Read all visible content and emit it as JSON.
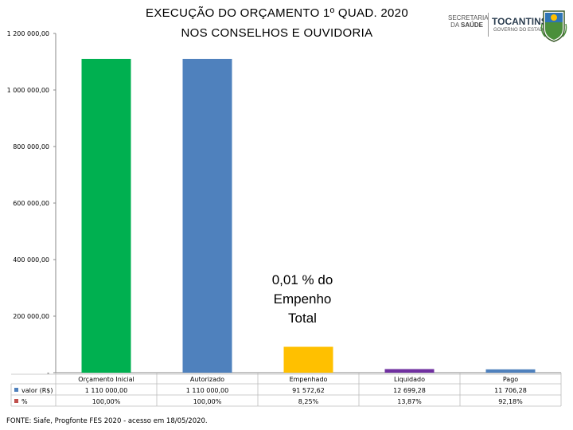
{
  "header": {
    "title_line1": "EXECUÇÃO DO ORÇAMENTO 1º QUAD. 2020",
    "title_line2": "NOS CONSELHOS E OUVIDORIA"
  },
  "logos": {
    "secretaria_line1": "SECRETARIA",
    "secretaria_line2": "DA",
    "secretaria_line3": "SAÚDE",
    "state_name": "TOCANTINS",
    "state_sub": "GOVERNO DO ESTADO"
  },
  "annotation": {
    "line1": "0,01 % do",
    "line2": "Empenho",
    "line3": "Total"
  },
  "source": "FONTE: Siafe, Progfonte FES 2020 - acesso em 18/05/2020.",
  "chart_data": {
    "type": "bar",
    "categories": [
      "Orçamento Inicial",
      "Autorizado",
      "Empenhado",
      "Liquidado",
      "Pago"
    ],
    "series": [
      {
        "name": "valor (R$)",
        "values": [
          1110000.0,
          1110000.0,
          91572.62,
          12699.28,
          11706.28
        ],
        "labels": [
          "1 110 000,00",
          "1 110 000,00",
          "91 572,62",
          "12 699,28",
          "11 706,28"
        ]
      },
      {
        "name": "%",
        "labels": [
          "100,00%",
          "100,00%",
          "8,25%",
          "13,87%",
          "92,18%"
        ]
      }
    ],
    "bar_colors": [
      "#00b050",
      "#4f81bd",
      "#ffc000",
      "#7030a0",
      "#4f81bd"
    ],
    "legend_colors": [
      "#4f81bd",
      "#c0504d"
    ],
    "ylim": [
      0,
      1200000
    ],
    "yticks": [
      {
        "value": 0,
        "label": "-"
      },
      {
        "value": 200000,
        "label": "200 000,00"
      },
      {
        "value": 400000,
        "label": "400 000,00"
      },
      {
        "value": 600000,
        "label": "600 000,00"
      },
      {
        "value": 800000,
        "label": "800 000,00"
      },
      {
        "value": 1000000,
        "label": "1 000 000,00"
      },
      {
        "value": 1200000,
        "label": "1 200 000,00"
      }
    ],
    "grid": false,
    "legend_position": "bottom-left (data table)"
  }
}
